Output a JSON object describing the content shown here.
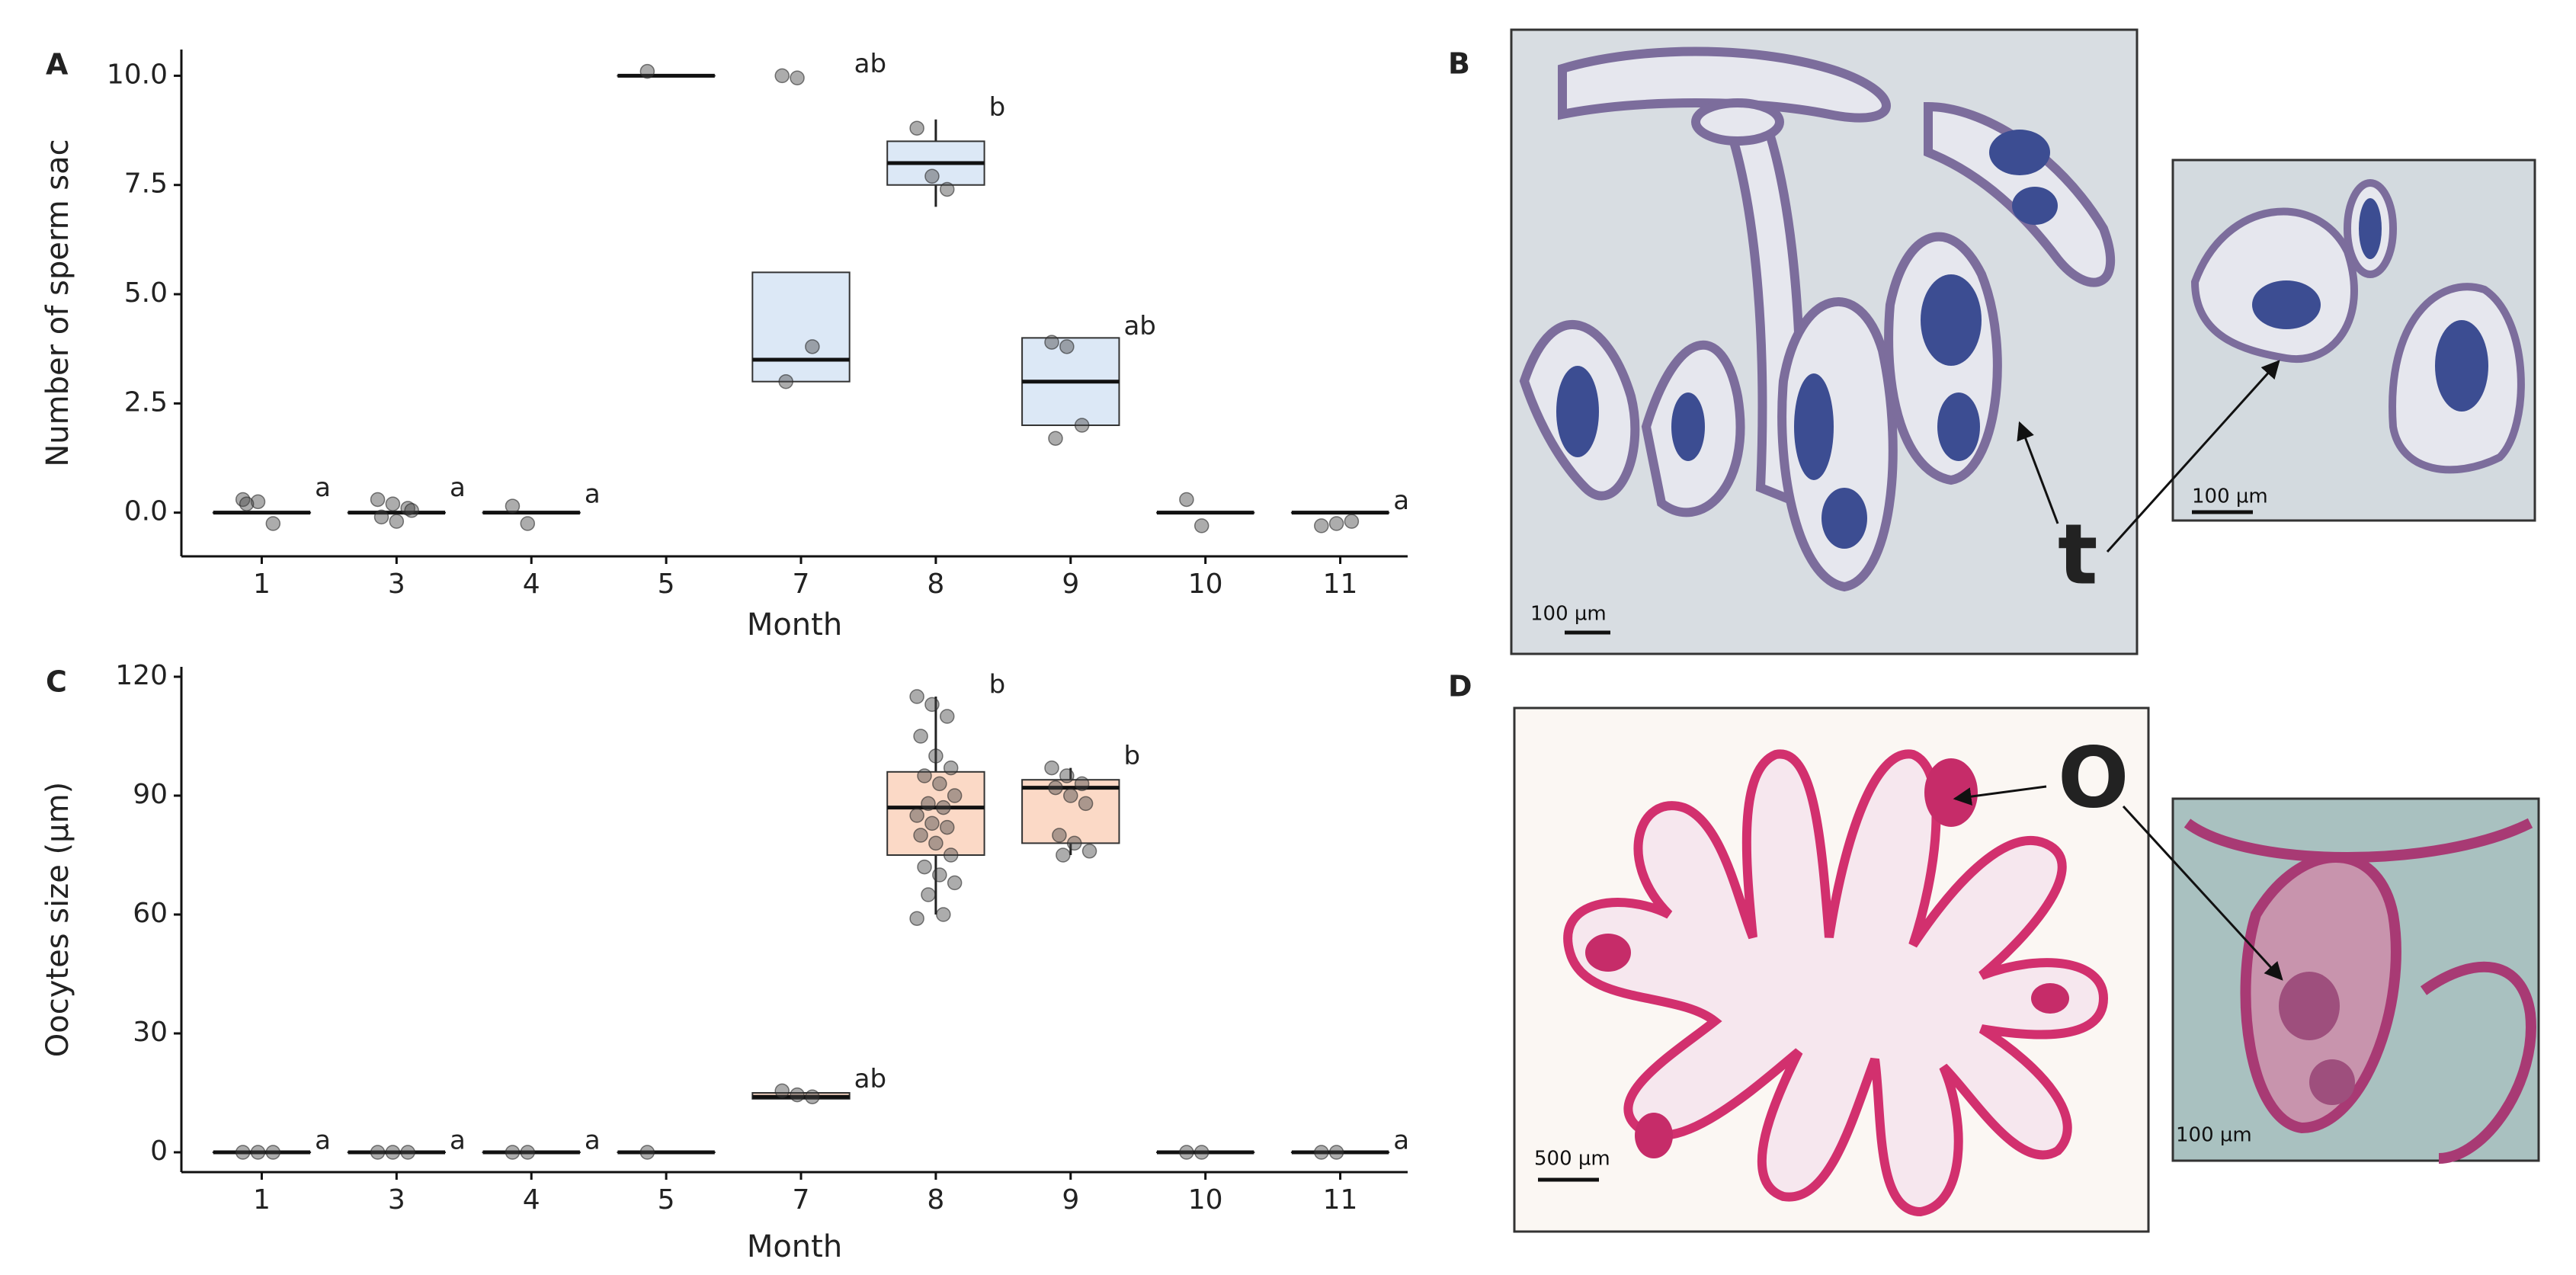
{
  "chart_data": [
    {
      "type": "box",
      "panel": "A",
      "ylabel": "Number of sperm sac",
      "xlabel": "Month",
      "categories": [
        "1",
        "3",
        "4",
        "5",
        "7",
        "8",
        "9",
        "10",
        "11"
      ],
      "fill": "#dce8f6",
      "ylim": [
        -1.0,
        10.6
      ],
      "yticks": [
        {
          "value": 0,
          "label": "0.0"
        },
        {
          "value": 2.5,
          "label": "2.5"
        },
        {
          "value": 5,
          "label": "5.0"
        },
        {
          "value": 7.5,
          "label": "7.5"
        },
        {
          "value": 10,
          "label": "10.0"
        }
      ],
      "boxes": [
        {
          "q1": 0,
          "median": 0,
          "q3": 0,
          "low": 0,
          "high": 0,
          "points": [
            0.3,
            0.25,
            -0.25,
            0.2
          ]
        },
        {
          "q1": 0,
          "median": 0,
          "q3": 0,
          "low": 0,
          "high": 0,
          "points": [
            0.3,
            0.2,
            0.1,
            -0.1,
            -0.2,
            0.05
          ]
        },
        {
          "q1": 0,
          "median": 0,
          "q3": 0,
          "low": 0,
          "high": 0,
          "points": [
            0.15,
            -0.25
          ]
        },
        {
          "q1": 10,
          "median": 10,
          "q3": 10,
          "low": 10,
          "high": 10,
          "points": [
            10.1
          ]
        },
        {
          "q1": 3,
          "median": 3.5,
          "q3": 5.5,
          "low": 3,
          "high": 5.5,
          "points": [
            10,
            9.95,
            3.8,
            3.0
          ]
        },
        {
          "q1": 7.5,
          "median": 8,
          "q3": 8.5,
          "low": 7,
          "high": 9,
          "points": [
            8.8,
            7.7,
            7.4
          ]
        },
        {
          "q1": 2,
          "median": 3,
          "q3": 4,
          "low": 2,
          "high": 4,
          "points": [
            3.9,
            3.8,
            2.0,
            1.7
          ]
        },
        {
          "q1": 0,
          "median": 0,
          "q3": 0,
          "low": 0,
          "high": 0,
          "points": [
            0.3,
            -0.3
          ]
        },
        {
          "q1": 0,
          "median": 0,
          "q3": 0,
          "low": 0,
          "high": 0,
          "points": [
            -0.3,
            -0.25,
            -0.2
          ]
        }
      ],
      "letters": [
        "a",
        "a",
        "a",
        null,
        "ab",
        "b",
        "ab",
        null,
        "a"
      ]
    },
    {
      "type": "box",
      "panel": "C",
      "ylabel": "Oocytes size (µm)",
      "xlabel": "Month",
      "categories": [
        "1",
        "3",
        "4",
        "5",
        "7",
        "8",
        "9",
        "10",
        "11"
      ],
      "fill": "#fbd9c6",
      "ylim": [
        -5,
        122.5
      ],
      "yticks": [
        0,
        30,
        60,
        90,
        120
      ],
      "boxes": [
        {
          "q1": 0,
          "median": 0,
          "q3": 0,
          "low": 0,
          "high": 0,
          "points": [
            0,
            0,
            0
          ]
        },
        {
          "q1": 0,
          "median": 0,
          "q3": 0,
          "low": 0,
          "high": 0,
          "points": [
            0,
            0,
            0
          ]
        },
        {
          "q1": 0,
          "median": 0,
          "q3": 0,
          "low": 0,
          "high": 0,
          "points": [
            0,
            0
          ]
        },
        {
          "q1": 0,
          "median": 0,
          "q3": 0,
          "low": 0,
          "high": 0,
          "points": [
            0
          ]
        },
        {
          "q1": 13.5,
          "median": 14,
          "q3": 15,
          "low": 13.5,
          "high": 15,
          "points": [
            15.5,
            14.5,
            14
          ]
        },
        {
          "q1": 75,
          "median": 87,
          "q3": 96,
          "low": 60,
          "high": 115,
          "points": [
            115,
            113,
            110,
            105,
            100,
            97,
            95,
            93,
            90,
            88,
            87,
            85,
            83,
            82,
            80,
            78,
            75,
            72,
            70,
            68,
            65,
            60,
            59
          ]
        },
        {
          "q1": 78,
          "median": 92,
          "q3": 94,
          "low": 75,
          "high": 97,
          "points": [
            97,
            95,
            93,
            92,
            90,
            88,
            80,
            78,
            76,
            75
          ]
        },
        {
          "q1": 0,
          "median": 0,
          "q3": 0,
          "low": 0,
          "high": 0,
          "points": [
            0,
            0
          ]
        },
        {
          "q1": 0,
          "median": 0,
          "q3": 0,
          "low": 0,
          "high": 0,
          "points": [
            0,
            0
          ]
        }
      ],
      "letters": [
        "a",
        "a",
        "a",
        null,
        "ab",
        "b",
        "b",
        null,
        "a"
      ]
    }
  ],
  "images": [
    {
      "panel": "B",
      "arrow_label": "t",
      "scale_bars": [
        "100 µm",
        "100 µm"
      ]
    },
    {
      "panel": "D",
      "arrow_label": "O",
      "scale_bars": [
        "500 µm",
        "100 µm"
      ]
    }
  ]
}
